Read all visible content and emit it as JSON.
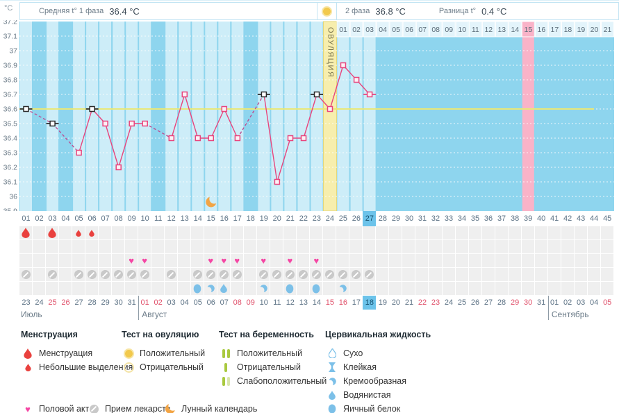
{
  "header": {
    "unit": "°C",
    "phase1_label": "Средняя t° 1 фаза",
    "phase1_value": "36.4 °C",
    "phase2_label": "2 фаза",
    "phase2_value": "36.8 °C",
    "diff_label": "Разница t°",
    "diff_value": "0.4 °C"
  },
  "chart_data": {
    "type": "line",
    "ylabel": "°C",
    "ylim": [
      35.9,
      37.2
    ],
    "yticks": [
      "37.2",
      "37.1",
      "37",
      "36.9",
      "36.8",
      "36.7",
      "36.6",
      "36.5",
      "36.4",
      "36.3",
      "36.2",
      "36.1",
      "36",
      "35.9"
    ],
    "coverline": 36.6,
    "days_total": 45,
    "ovulation_day": 24,
    "ovulation_label": "ОВУЛЯЦИЯ",
    "expected_period_day": 39,
    "today_day": 27,
    "dpo_start_day": 25,
    "dpo_count": 21,
    "dpo_highlight": 15,
    "moon_day": 15,
    "points": [
      {
        "day": 1,
        "temp": 36.6,
        "style": "black"
      },
      {
        "day": 3,
        "temp": 36.5,
        "style": "black"
      },
      {
        "day": 5,
        "temp": 36.3,
        "style": "pink"
      },
      {
        "day": 6,
        "temp": 36.6,
        "style": "black"
      },
      {
        "day": 7,
        "temp": 36.5,
        "style": "pink"
      },
      {
        "day": 8,
        "temp": 36.2,
        "style": "pink"
      },
      {
        "day": 9,
        "temp": 36.5,
        "style": "pink"
      },
      {
        "day": 10,
        "temp": 36.5,
        "style": "pink"
      },
      {
        "day": 12,
        "temp": 36.4,
        "style": "pink"
      },
      {
        "day": 13,
        "temp": 36.7,
        "style": "pink"
      },
      {
        "day": 14,
        "temp": 36.4,
        "style": "pink"
      },
      {
        "day": 15,
        "temp": 36.4,
        "style": "pink"
      },
      {
        "day": 16,
        "temp": 36.6,
        "style": "pink"
      },
      {
        "day": 17,
        "temp": 36.4,
        "style": "pink"
      },
      {
        "day": 19,
        "temp": 36.7,
        "style": "black"
      },
      {
        "day": 20,
        "temp": 36.1,
        "style": "pink"
      },
      {
        "day": 21,
        "temp": 36.4,
        "style": "pink"
      },
      {
        "day": 22,
        "temp": 36.4,
        "style": "pink"
      },
      {
        "day": 23,
        "temp": 36.7,
        "style": "black"
      },
      {
        "day": 24,
        "temp": 36.6,
        "style": "pink"
      },
      {
        "day": 25,
        "temp": 36.9,
        "style": "pink"
      },
      {
        "day": 26,
        "temp": 36.8,
        "style": "pink"
      },
      {
        "day": 27,
        "temp": 36.7,
        "style": "pink-dash"
      }
    ]
  },
  "events": {
    "menstruation": [
      {
        "day": 1,
        "size": "large"
      },
      {
        "day": 3,
        "size": "large"
      },
      {
        "day": 5,
        "size": "small"
      },
      {
        "day": 6,
        "size": "small"
      }
    ],
    "intercourse_days": [
      9,
      10,
      15,
      16,
      17,
      19,
      21,
      23
    ],
    "medication_days": [
      1,
      3,
      5,
      6,
      7,
      8,
      9,
      10,
      12,
      14,
      15,
      16,
      17,
      19,
      20,
      21,
      22,
      23,
      24,
      25,
      26,
      27
    ],
    "cervical_fluid": [
      {
        "day": 14,
        "type": "eggwhite"
      },
      {
        "day": 15,
        "type": "creamy"
      },
      {
        "day": 16,
        "type": "watery"
      },
      {
        "day": 19,
        "type": "creamy"
      },
      {
        "day": 21,
        "type": "eggwhite"
      },
      {
        "day": 23,
        "type": "eggwhite"
      },
      {
        "day": 25,
        "type": "creamy"
      }
    ]
  },
  "calendar": {
    "months": [
      {
        "name": "Июль",
        "start": 23,
        "end": 31,
        "weekends": [
          25,
          26
        ]
      },
      {
        "name": "Август",
        "start": 1,
        "end": 31,
        "weekends": [
          1,
          2,
          8,
          9,
          15,
          16,
          22,
          23,
          29,
          30
        ],
        "today": 18
      },
      {
        "name": "Сентябрь",
        "start": 1,
        "end": 5,
        "weekends": [
          5
        ]
      }
    ]
  },
  "legend": {
    "menstruation": {
      "title": "Менструация",
      "items": [
        {
          "icon": "drop-large",
          "label": "Менструация"
        },
        {
          "icon": "drop-small",
          "label": "Небольшие выделения"
        }
      ]
    },
    "ovulation_test": {
      "title": "Тест на овуляцию",
      "items": [
        {
          "icon": "circle-filled",
          "label": "Положительный"
        },
        {
          "icon": "circle-outline",
          "label": "Отрицательный"
        }
      ]
    },
    "pregnancy_test": {
      "title": "Тест на беременность",
      "items": [
        {
          "icon": "bars-two",
          "label": "Положительный"
        },
        {
          "icon": "bar-one",
          "label": "Отрицательный"
        },
        {
          "icon": "bars-weak",
          "label": "Слабоположительный"
        }
      ]
    },
    "cervical": {
      "title": "Цервикальная жидкость",
      "items": [
        {
          "icon": "drop-outline",
          "label": "Сухо"
        },
        {
          "icon": "sticky",
          "label": "Клейкая"
        },
        {
          "icon": "creamy",
          "label": "Кремообразная"
        },
        {
          "icon": "watery",
          "label": "Водянистая"
        },
        {
          "icon": "eggwhite",
          "label": "Яичный белок"
        }
      ]
    },
    "extra": [
      {
        "icon": "heart",
        "label": "Половой акт"
      },
      {
        "icon": "pill",
        "label": "Прием лекарств"
      },
      {
        "icon": "moon",
        "label": "Лунный календарь"
      }
    ]
  },
  "glyphs": {
    "heart": "♥"
  },
  "colors": {
    "chart_bg": "#8ed5ee",
    "column_measured": "#cdedf8",
    "ovulation_column": "#f7eead",
    "ovulation_border": "#e3d77b",
    "ovulation_text": "#7a744d",
    "period_column": "#f9b3c8",
    "coverline": "#e9e878",
    "gridline": "#ffffff",
    "line_pink": "#e8457d",
    "line_dashed": "#bb4f93",
    "marker_black": "#2a2a2a",
    "marker_fill": "#fdf0f5",
    "dpo_cell_bg": "#e3f4fb",
    "dpo_cell_highlight": "#f9b3c8",
    "dpo_text": "#5a6b78",
    "today_bg": "#6cc3ea",
    "weekend_text": "#e0506a",
    "day_text": "#5b7184",
    "ytick_text": "#6b7b88",
    "menses_red": "#e9413e",
    "heart_pink": "#f546a4",
    "pill_gray": "#c9c9c9",
    "cervical_blue": "#7cc0e8",
    "moon_orange": "#f2a444",
    "test_yellow": "#f2c94c",
    "preg_green": "#a9c93f",
    "preg_green_pale": "#d9e6ac"
  }
}
